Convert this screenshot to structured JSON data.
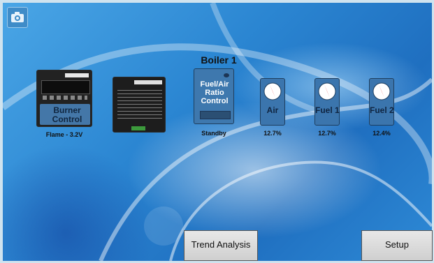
{
  "screen": {
    "title": "Boiler 1",
    "icons": {
      "top_left": "camera-icon"
    }
  },
  "devices": {
    "burner_control": {
      "label_line1": "Burner",
      "label_line2": "Control",
      "caption": "Flame - 3.2V"
    },
    "expansion_module": {
      "caption": ""
    },
    "fuel_air_ratio": {
      "label_line1": "Fuel/Air",
      "label_line2": "Ratio",
      "label_line3": "Control",
      "caption": "Standby"
    }
  },
  "valves": [
    {
      "label": "Air",
      "value": "12.7%"
    },
    {
      "label": "Fuel 1",
      "value": "12.7%"
    },
    {
      "label": "Fuel 2",
      "value": "12.4%"
    }
  ],
  "buttons": {
    "trend_analysis": "Trend Analysis",
    "setup": "Setup"
  },
  "colors": {
    "background_blue": "#2b86d2",
    "tile_blue": "#3b75ad",
    "pointer_red": "#d92020"
  }
}
